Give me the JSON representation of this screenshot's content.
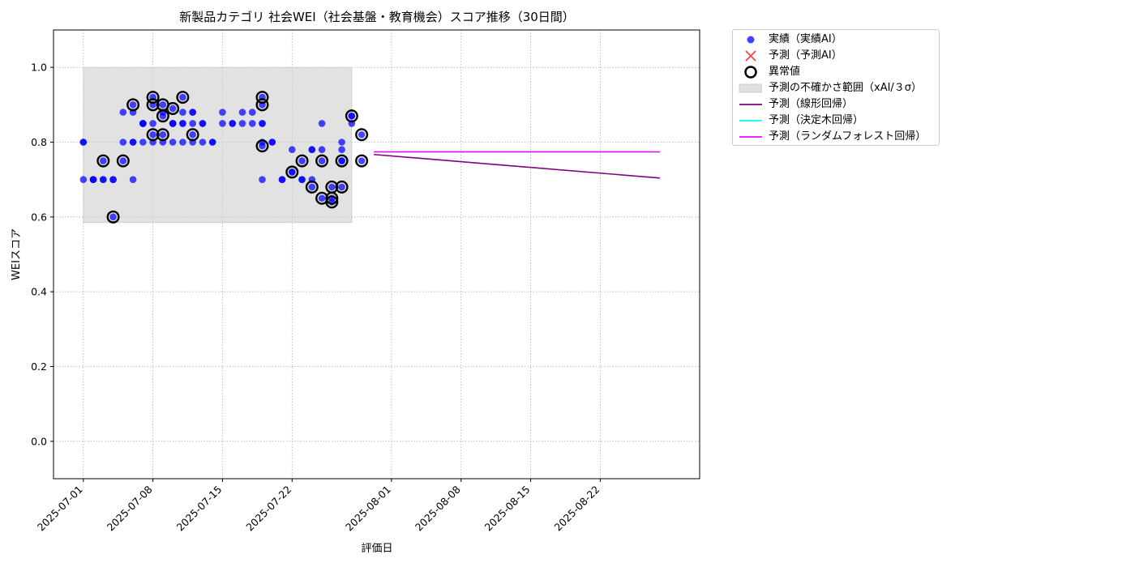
{
  "chart_data": {
    "type": "scatter",
    "title": "新製品カテゴリ 社会WEI（社会基盤・教育機会）スコア推移（30日間）",
    "xlabel": "評価日",
    "ylabel": "WEIスコア",
    "x_range": [
      "2025-06-28",
      "2025-09-01"
    ],
    "ylim": [
      -0.1,
      1.1
    ],
    "x_ticks": [
      "2025-07-01",
      "2025-07-08",
      "2025-07-15",
      "2025-07-22",
      "2025-08-01",
      "2025-08-08",
      "2025-08-15",
      "2025-08-22"
    ],
    "y_ticks": [
      0.0,
      0.2,
      0.4,
      0.6,
      0.8,
      1.0
    ],
    "y_tick_labels": [
      "0.0",
      "0.2",
      "0.4",
      "0.6",
      "0.8",
      "1.0"
    ],
    "grid": true,
    "legend_position": "outside-upper-right",
    "colors": {
      "actual": "#0000ff",
      "predicted": "#ff0000",
      "anomaly": "#000000",
      "band": "#d3d3d3",
      "linear": "#800080",
      "tree": "#00ffff",
      "forest": "#ff00ff"
    },
    "legend": [
      {
        "key": "actual",
        "label": "実績（実績AI）",
        "marker": "dot"
      },
      {
        "key": "predicted",
        "label": "予測（予測AI）",
        "marker": "x"
      },
      {
        "key": "anomaly",
        "label": "異常値",
        "marker": "ring"
      },
      {
        "key": "band",
        "label": "予測の不確かさ範囲（xAI/３σ）",
        "marker": "patch"
      },
      {
        "key": "linear",
        "label": "予測（線形回帰）",
        "marker": "line"
      },
      {
        "key": "tree",
        "label": "予測（決定木回帰）",
        "marker": "line"
      },
      {
        "key": "forest",
        "label": "予測（ランダムフォレスト回帰）",
        "marker": "line"
      }
    ],
    "uncertainty_band": {
      "x": [
        "2025-07-01",
        "2025-07-28"
      ],
      "y": [
        0.585,
        1.0
      ]
    },
    "series": [
      {
        "name": "実績（実績AI）",
        "type": "scatter",
        "points": [
          [
            "2025-07-01",
            0.8
          ],
          [
            "2025-07-01",
            0.7
          ],
          [
            "2025-07-01",
            0.8
          ],
          [
            "2025-07-02",
            0.7
          ],
          [
            "2025-07-02",
            0.7
          ],
          [
            "2025-07-02",
            0.7
          ],
          [
            "2025-07-03",
            0.7
          ],
          [
            "2025-07-03",
            0.7
          ],
          [
            "2025-07-03",
            0.75
          ],
          [
            "2025-07-04",
            0.7
          ],
          [
            "2025-07-04",
            0.7
          ],
          [
            "2025-07-04",
            0.6
          ],
          [
            "2025-07-05",
            0.75
          ],
          [
            "2025-07-05",
            0.88
          ],
          [
            "2025-07-05",
            0.8
          ],
          [
            "2025-07-06",
            0.8
          ],
          [
            "2025-07-06",
            0.7
          ],
          [
            "2025-07-06",
            0.9
          ],
          [
            "2025-07-06",
            0.88
          ],
          [
            "2025-07-06",
            0.8
          ],
          [
            "2025-07-07",
            0.85
          ],
          [
            "2025-07-07",
            0.85
          ],
          [
            "2025-07-07",
            0.85
          ],
          [
            "2025-07-07",
            0.85
          ],
          [
            "2025-07-07",
            0.8
          ],
          [
            "2025-07-08",
            0.9
          ],
          [
            "2025-07-08",
            0.8
          ],
          [
            "2025-07-08",
            0.82
          ],
          [
            "2025-07-08",
            0.85
          ],
          [
            "2025-07-08",
            0.92
          ],
          [
            "2025-07-09",
            0.9
          ],
          [
            "2025-07-09",
            0.87
          ],
          [
            "2025-07-09",
            0.88
          ],
          [
            "2025-07-09",
            0.82
          ],
          [
            "2025-07-09",
            0.8
          ],
          [
            "2025-07-10",
            0.85
          ],
          [
            "2025-07-10",
            0.89
          ],
          [
            "2025-07-10",
            0.8
          ],
          [
            "2025-07-10",
            0.85
          ],
          [
            "2025-07-10",
            0.85
          ],
          [
            "2025-07-11",
            0.92
          ],
          [
            "2025-07-11",
            0.85
          ],
          [
            "2025-07-11",
            0.85
          ],
          [
            "2025-07-11",
            0.8
          ],
          [
            "2025-07-11",
            0.88
          ],
          [
            "2025-07-12",
            0.82
          ],
          [
            "2025-07-12",
            0.8
          ],
          [
            "2025-07-12",
            0.85
          ],
          [
            "2025-07-12",
            0.88
          ],
          [
            "2025-07-12",
            0.88
          ],
          [
            "2025-07-13",
            0.85
          ],
          [
            "2025-07-13",
            0.85
          ],
          [
            "2025-07-13",
            0.8
          ],
          [
            "2025-07-14",
            0.8
          ],
          [
            "2025-07-14",
            0.8
          ],
          [
            "2025-07-15",
            0.88
          ],
          [
            "2025-07-15",
            0.85
          ],
          [
            "2025-07-16",
            0.85
          ],
          [
            "2025-07-16",
            0.85
          ],
          [
            "2025-07-17",
            0.88
          ],
          [
            "2025-07-17",
            0.85
          ],
          [
            "2025-07-18",
            0.88
          ],
          [
            "2025-07-18",
            0.85
          ],
          [
            "2025-07-19",
            0.85
          ],
          [
            "2025-07-19",
            0.92
          ],
          [
            "2025-07-19",
            0.9
          ],
          [
            "2025-07-19",
            0.85
          ],
          [
            "2025-07-19",
            0.79
          ],
          [
            "2025-07-19",
            0.8
          ],
          [
            "2025-07-19",
            0.7
          ],
          [
            "2025-07-20",
            0.8
          ],
          [
            "2025-07-20",
            0.8
          ],
          [
            "2025-07-21",
            0.7
          ],
          [
            "2025-07-21",
            0.7
          ],
          [
            "2025-07-22",
            0.72
          ],
          [
            "2025-07-22",
            0.78
          ],
          [
            "2025-07-22",
            0.72
          ],
          [
            "2025-07-23",
            0.75
          ],
          [
            "2025-07-23",
            0.7
          ],
          [
            "2025-07-23",
            0.7
          ],
          [
            "2025-07-24",
            0.68
          ],
          [
            "2025-07-24",
            0.7
          ],
          [
            "2025-07-24",
            0.78
          ],
          [
            "2025-07-24",
            0.78
          ],
          [
            "2025-07-25",
            0.75
          ],
          [
            "2025-07-25",
            0.78
          ],
          [
            "2025-07-25",
            0.85
          ],
          [
            "2025-07-25",
            0.65
          ],
          [
            "2025-07-26",
            0.65
          ],
          [
            "2025-07-26",
            0.64
          ],
          [
            "2025-07-26",
            0.68
          ],
          [
            "2025-07-27",
            0.8
          ],
          [
            "2025-07-27",
            0.75
          ],
          [
            "2025-07-27",
            0.78
          ],
          [
            "2025-07-27",
            0.68
          ],
          [
            "2025-07-27",
            0.75
          ],
          [
            "2025-07-28",
            0.85
          ],
          [
            "2025-07-28",
            0.87
          ],
          [
            "2025-07-28",
            0.87
          ],
          [
            "2025-07-29",
            0.82
          ],
          [
            "2025-07-29",
            0.75
          ]
        ]
      },
      {
        "name": "異常値",
        "type": "anomaly",
        "points": [
          [
            "2025-07-03",
            0.75
          ],
          [
            "2025-07-04",
            0.6
          ],
          [
            "2025-07-05",
            0.75
          ],
          [
            "2025-07-06",
            0.9
          ],
          [
            "2025-07-08",
            0.9
          ],
          [
            "2025-07-08",
            0.82
          ],
          [
            "2025-07-08",
            0.92
          ],
          [
            "2025-07-09",
            0.9
          ],
          [
            "2025-07-09",
            0.87
          ],
          [
            "2025-07-09",
            0.82
          ],
          [
            "2025-07-10",
            0.89
          ],
          [
            "2025-07-11",
            0.92
          ],
          [
            "2025-07-12",
            0.82
          ],
          [
            "2025-07-19",
            0.92
          ],
          [
            "2025-07-19",
            0.9
          ],
          [
            "2025-07-19",
            0.79
          ],
          [
            "2025-07-22",
            0.72
          ],
          [
            "2025-07-23",
            0.75
          ],
          [
            "2025-07-24",
            0.68
          ],
          [
            "2025-07-25",
            0.75
          ],
          [
            "2025-07-25",
            0.65
          ],
          [
            "2025-07-26",
            0.65
          ],
          [
            "2025-07-26",
            0.64
          ],
          [
            "2025-07-26",
            0.68
          ],
          [
            "2025-07-27",
            0.75
          ],
          [
            "2025-07-27",
            0.68
          ],
          [
            "2025-07-28",
            0.87
          ],
          [
            "2025-07-29",
            0.82
          ],
          [
            "2025-07-29",
            0.75
          ]
        ]
      },
      {
        "name": "予測（線形回帰）",
        "type": "line",
        "points": [
          [
            "2025-07-29",
            0.767
          ],
          [
            "2025-08-28",
            0.704
          ]
        ]
      },
      {
        "name": "予測（決定木回帰）",
        "type": "line",
        "points": [
          [
            "2025-07-29",
            0.774
          ],
          [
            "2025-08-28",
            0.774
          ]
        ]
      },
      {
        "name": "予測（ランダムフォレスト回帰）",
        "type": "line",
        "points": [
          [
            "2025-07-29",
            0.774
          ],
          [
            "2025-08-28",
            0.774
          ]
        ]
      }
    ]
  }
}
